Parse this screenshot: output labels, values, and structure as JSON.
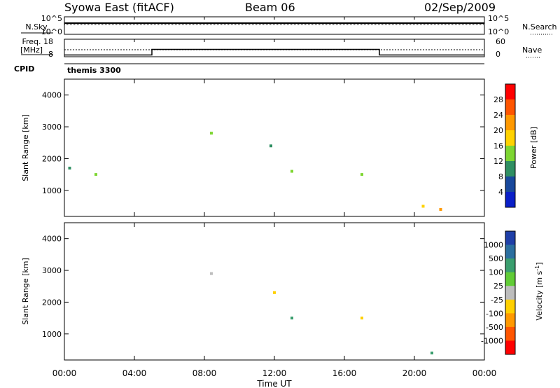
{
  "header": {
    "station": "Syowa East (fitACF)",
    "beam": "Beam 06",
    "date": "02/Sep/2009"
  },
  "params": {
    "nsky_label": "N.Sky",
    "nsky_ticks": [
      "10^5",
      "10^0"
    ],
    "nsearch_label": "N.Search",
    "nsearch_ticks": [
      "10^5",
      "10^0"
    ],
    "freq_label": [
      "Freq.",
      "[MHz]"
    ],
    "freq_ticks": [
      "18",
      "8"
    ],
    "nave_label": "Nave",
    "nave_ticks": [
      "60",
      "0"
    ],
    "cpid_label": "CPID",
    "cpid_value": "themis 3300",
    "freq_trace": [
      {
        "t": 0,
        "mhz": 9.0
      },
      {
        "t": 5.0,
        "mhz": 9.0
      },
      {
        "t": 5.0,
        "mhz": 12.2
      },
      {
        "t": 18.0,
        "mhz": 12.2
      },
      {
        "t": 18.0,
        "mhz": 9.0
      },
      {
        "t": 24,
        "mhz": 9.0
      }
    ]
  },
  "chart_data": [
    {
      "type": "heatmap",
      "ylabel": "Slant Range [km]",
      "yticks": [
        "4000",
        "3000",
        "2000",
        "1000"
      ],
      "ylim": [
        180,
        4500
      ],
      "xlim": [
        0,
        24
      ],
      "colorbar_label": "Power [dB]",
      "colorbar_ticks": [
        "28",
        "24",
        "20",
        "16",
        "12",
        "8",
        "4"
      ],
      "colorbar_colors": [
        "#ff0000",
        "#ff5500",
        "#ff9900",
        "#ffd200",
        "#7ed632",
        "#2f8f62",
        "#18489c",
        "#0a1fc8"
      ],
      "description_points": [
        {
          "t": 0.3,
          "r": 1700,
          "v": 10
        },
        {
          "t": 1.8,
          "r": 1500,
          "v": 12
        },
        {
          "t": 8.4,
          "r": 2800,
          "v": 12
        },
        {
          "t": 11.8,
          "r": 2400,
          "v": 10
        },
        {
          "t": 13.0,
          "r": 1600,
          "v": 14
        },
        {
          "t": 17.0,
          "r": 1500,
          "v": 12
        },
        {
          "t": 20.5,
          "r": 500,
          "v": 18
        },
        {
          "t": 21.5,
          "r": 400,
          "v": 22
        }
      ]
    },
    {
      "type": "heatmap",
      "ylabel": "Slant Range [km]",
      "yticks": [
        "4000",
        "3000",
        "2000",
        "1000"
      ],
      "ylim": [
        180,
        4500
      ],
      "xlim": [
        0,
        24
      ],
      "xticks": [
        "00:00",
        "04:00",
        "08:00",
        "12:00",
        "16:00",
        "20:00",
        "00:00"
      ],
      "xlabel": "Time UT",
      "colorbar_label": "Velocity [m s",
      "colorbar_label_sup": "-1",
      "colorbar_label_end": "]",
      "colorbar_ticks": [
        "1000",
        "500",
        "100",
        "25",
        "-25",
        "-100",
        "-500",
        "-1000"
      ],
      "colorbar_colors": [
        "#1f3fa8",
        "#2b6fa0",
        "#3a9e6e",
        "#61cc36",
        "#bdbdbd",
        "#ffd000",
        "#ff9900",
        "#ff5500",
        "#ff0000"
      ],
      "description_points": [
        {
          "t": 8.4,
          "r": 2900,
          "v": 0
        },
        {
          "t": 12.0,
          "r": 2300,
          "v": -100
        },
        {
          "t": 13.0,
          "r": 1500,
          "v": 500
        },
        {
          "t": 17.0,
          "r": 1500,
          "v": -100
        },
        {
          "t": 21.0,
          "r": 400,
          "v": 100
        }
      ]
    }
  ]
}
